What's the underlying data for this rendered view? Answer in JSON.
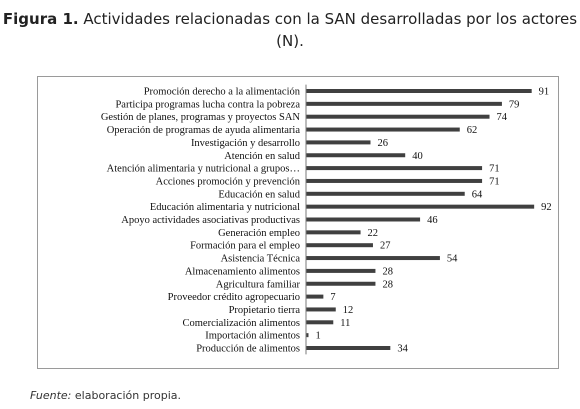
{
  "figure": {
    "label": "Figura 1.",
    "title": "Actividades relacionadas con la SAN desarrolladas por los actores (N).",
    "source_label": "Fuente:",
    "source_text": "elaboración propia."
  },
  "chart_data": {
    "type": "bar",
    "orientation": "horizontal",
    "categories": [
      "Promoción derecho a la alimentación",
      "Participa programas lucha contra la pobreza",
      "Gestión de planes, programas y proyectos SAN",
      "Operación de programas de ayuda alimentaria",
      "Investigación y desarrollo",
      "Atención en salud",
      "Atención alimentaria y nutricional a grupos…",
      "Acciones promoción y prevención",
      "Educación en salud",
      "Educación alimentaria y  nutricional",
      "Apoyo actividades asociativas productivas",
      "Generación empleo",
      "Formación para el empleo",
      "Asistencia Técnica",
      "Almacenamiento alimentos",
      "Agricultura familiar",
      "Proveedor crédito agropecuario",
      "Propietario tierra",
      "Comercialización alimentos",
      "Importación alimentos",
      "Producción de alimentos"
    ],
    "values": [
      91,
      79,
      74,
      62,
      26,
      40,
      71,
      71,
      64,
      92,
      46,
      22,
      27,
      54,
      28,
      28,
      7,
      12,
      11,
      1,
      34
    ],
    "xlim": [
      0,
      100
    ],
    "grid": false,
    "legend": false,
    "data_labels": true,
    "bar_color": "#404040"
  }
}
